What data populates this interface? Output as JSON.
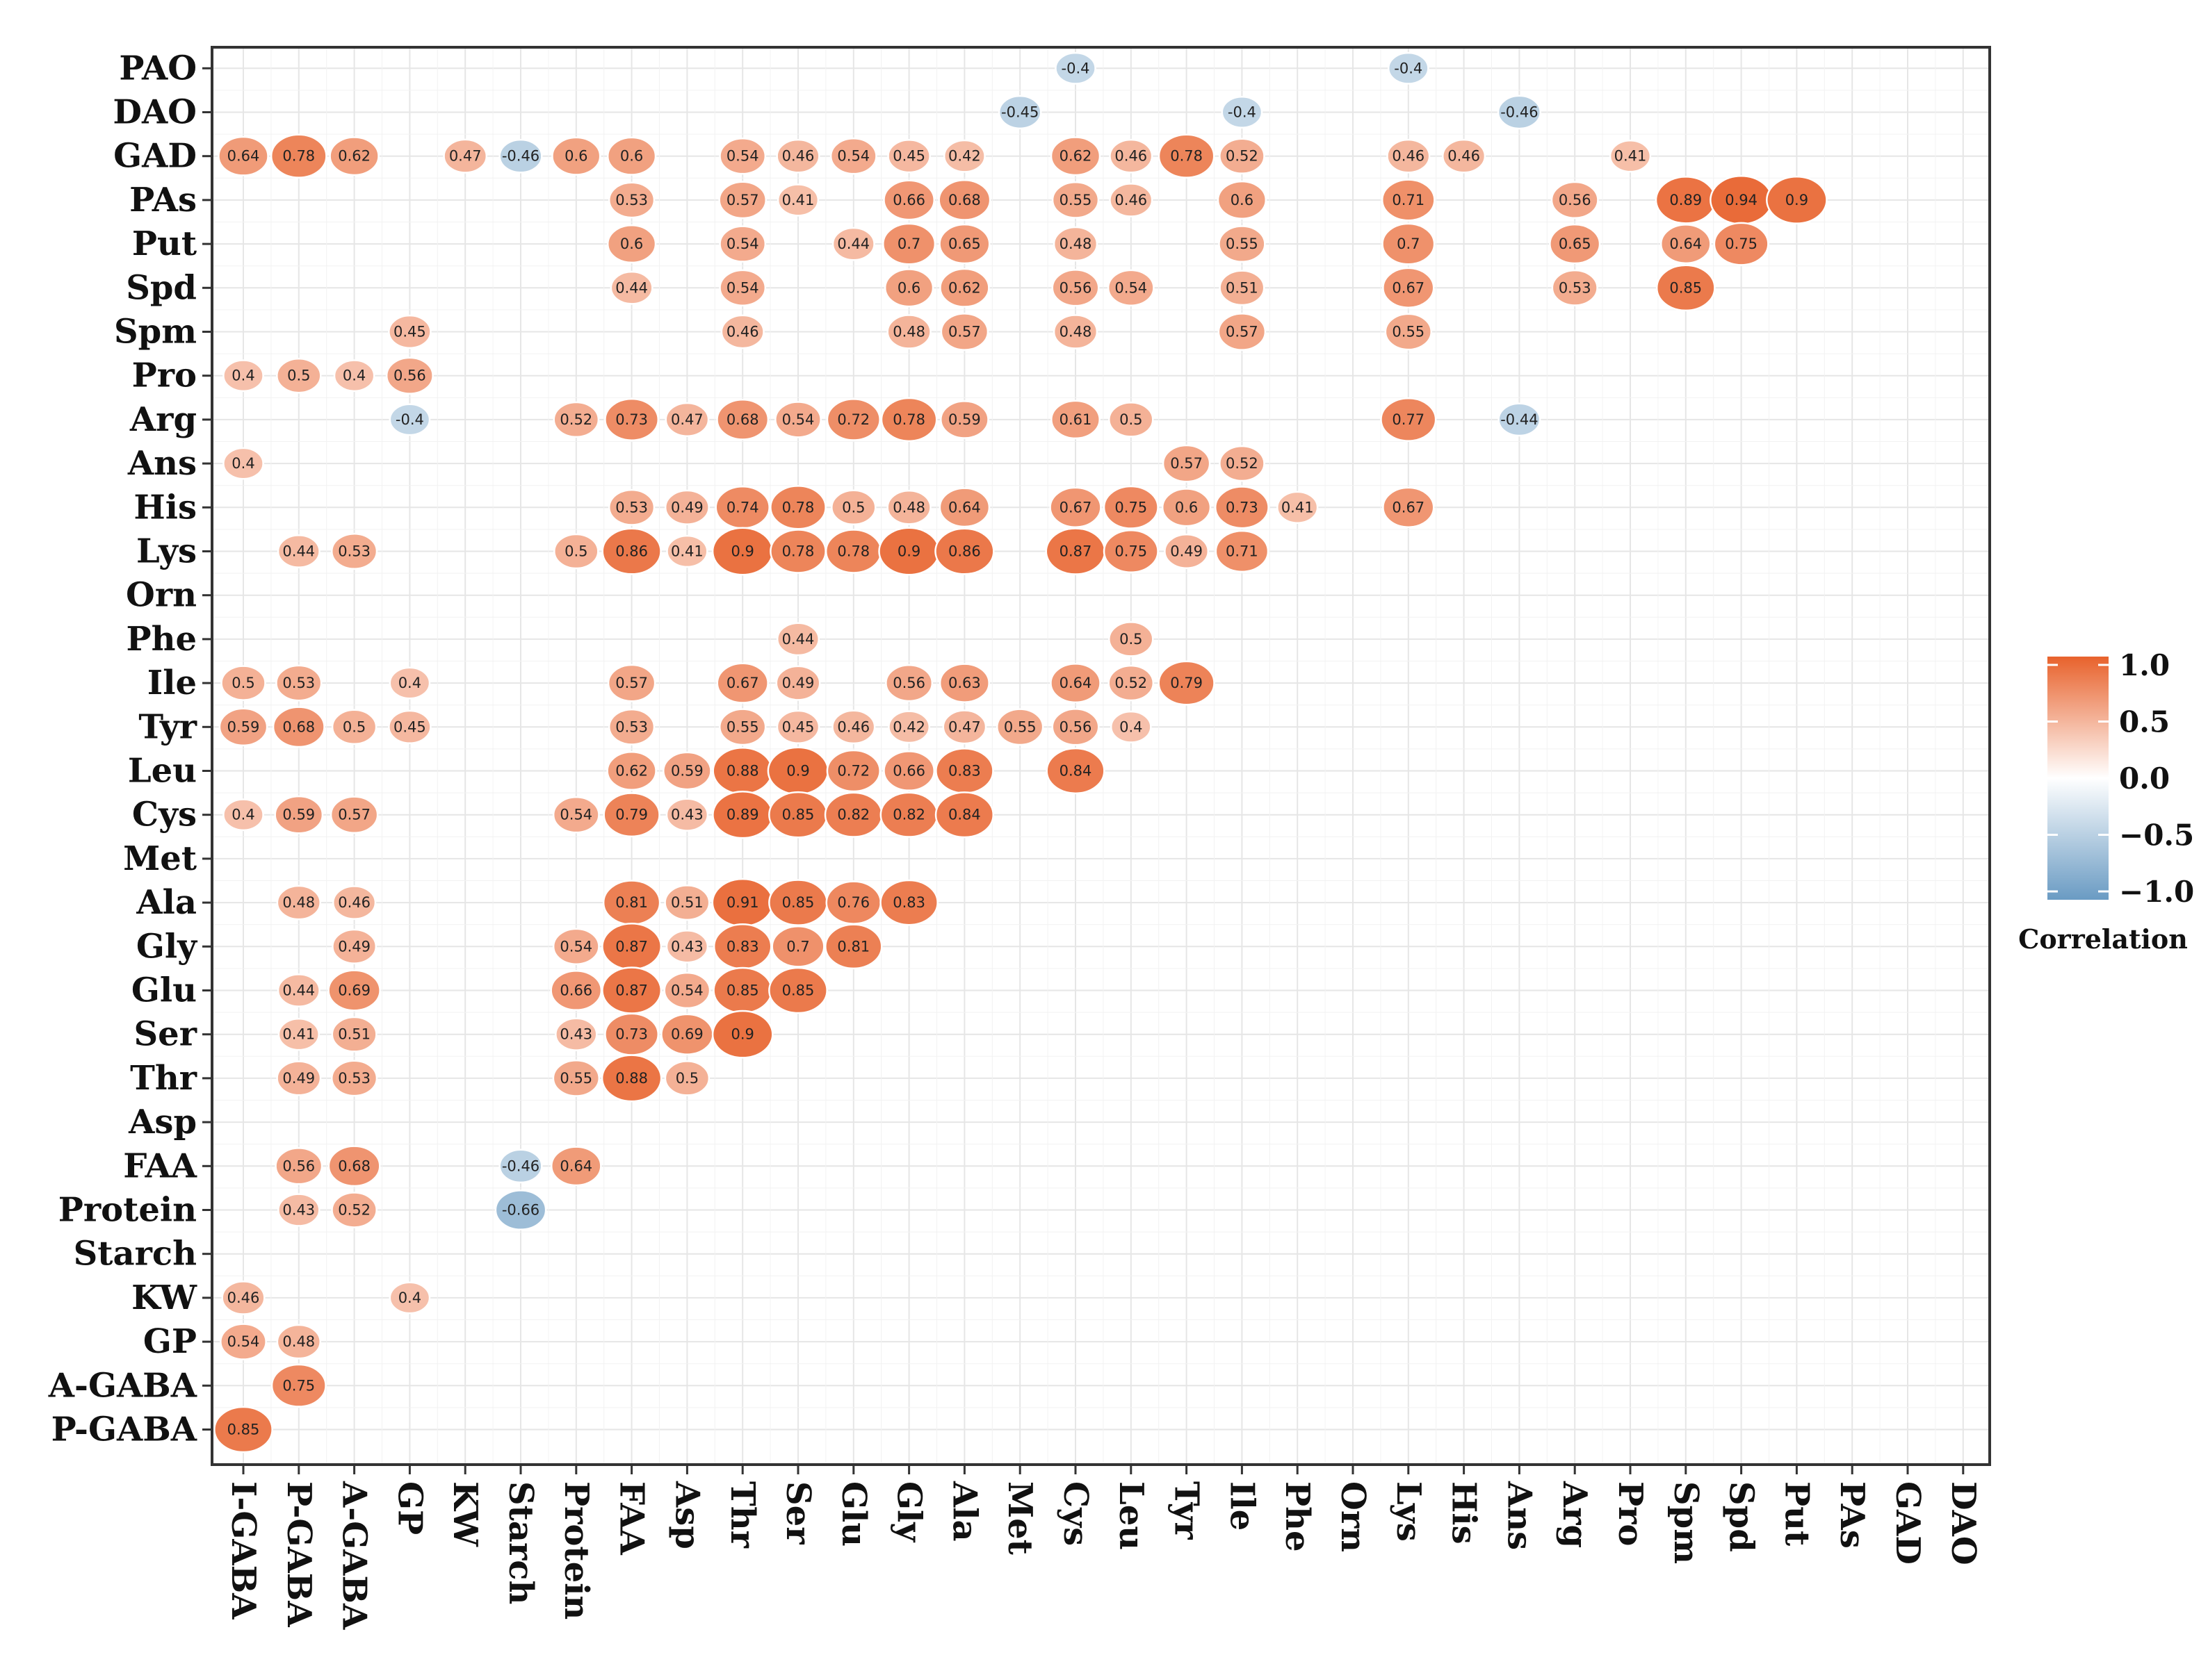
{
  "chart_data": {
    "type": "heatmap",
    "style": "circle-correlation-matrix",
    "rows": [
      "PAO",
      "DAO",
      "GAD",
      "PAs",
      "Put",
      "Spd",
      "Spm",
      "Pro",
      "Arg",
      "Ans",
      "His",
      "Lys",
      "Orn",
      "Phe",
      "Ile",
      "Tyr",
      "Leu",
      "Cys",
      "Met",
      "Ala",
      "Gly",
      "Glu",
      "Ser",
      "Thr",
      "Asp",
      "FAA",
      "Protein",
      "Starch",
      "KW",
      "GP",
      "A-GABA",
      "P-GABA"
    ],
    "columns": [
      "I-GABA",
      "P-GABA",
      "A-GABA",
      "GP",
      "KW",
      "Starch",
      "Protein",
      "FAA",
      "Asp",
      "Thr",
      "Ser",
      "Glu",
      "Gly",
      "Ala",
      "Met",
      "Cys",
      "Leu",
      "Tyr",
      "Ile",
      "Phe",
      "Orn",
      "Lys",
      "His",
      "Ans",
      "Arg",
      "Pro",
      "Spm",
      "Spd",
      "Put",
      "PAs",
      "GAD",
      "DAO"
    ],
    "values": {
      "PAO": {
        "Cys": "-0.4",
        "Lys": "-0.4"
      },
      "DAO": {
        "Met": "-0.45",
        "Ile": "-0.4",
        "Ans": "-0.46"
      },
      "GAD": {
        "I-GABA": "0.64",
        "P-GABA": "0.78",
        "A-GABA": "0.62",
        "KW": "0.47",
        "Starch": "-0.46",
        "Protein": "0.6",
        "FAA": "0.6",
        "Thr": "0.54",
        "Ser": "0.46",
        "Glu": "0.54",
        "Gly": "0.45",
        "Ala": "0.42",
        "Cys": "0.62",
        "Leu": "0.46",
        "Tyr": "0.78",
        "Ile": "0.52",
        "Lys": "0.46",
        "His": "0.46",
        "Pro": "0.41"
      },
      "PAs": {
        "FAA": "0.53",
        "Thr": "0.57",
        "Ser": "0.41",
        "Gly": "0.66",
        "Ala": "0.68",
        "Cys": "0.55",
        "Leu": "0.46",
        "Ile": "0.6",
        "Lys": "0.71",
        "Arg": "0.56",
        "Spm": "0.89",
        "Spd": "0.94",
        "Put": "0.9"
      },
      "Put": {
        "FAA": "0.6",
        "Thr": "0.54",
        "Glu": "0.44",
        "Gly": "0.7",
        "Ala": "0.65",
        "Cys": "0.48",
        "Ile": "0.55",
        "Lys": "0.7",
        "Arg": "0.65",
        "Spm": "0.64",
        "Spd": "0.75"
      },
      "Spd": {
        "FAA": "0.44",
        "Thr": "0.54",
        "Gly": "0.6",
        "Ala": "0.62",
        "Cys": "0.56",
        "Leu": "0.54",
        "Ile": "0.51",
        "Lys": "0.67",
        "Arg": "0.53",
        "Spm": "0.85"
      },
      "Spm": {
        "GP": "0.45",
        "Thr": "0.46",
        "Gly": "0.48",
        "Ala": "0.57",
        "Cys": "0.48",
        "Ile": "0.57",
        "Lys": "0.55"
      },
      "Pro": {
        "I-GABA": "0.4",
        "P-GABA": "0.5",
        "A-GABA": "0.4",
        "GP": "0.56"
      },
      "Arg": {
        "GP": "-0.4",
        "Protein": "0.52",
        "FAA": "0.73",
        "Asp": "0.47",
        "Thr": "0.68",
        "Ser": "0.54",
        "Glu": "0.72",
        "Gly": "0.78",
        "Ala": "0.59",
        "Cys": "0.61",
        "Leu": "0.5",
        "Lys": "0.77",
        "Ans": "-0.44"
      },
      "Ans": {
        "I-GABA": "0.4",
        "Tyr": "0.57",
        "Ile": "0.52"
      },
      "His": {
        "FAA": "0.53",
        "Asp": "0.49",
        "Thr": "0.74",
        "Ser": "0.78",
        "Glu": "0.5",
        "Gly": "0.48",
        "Ala": "0.64",
        "Cys": "0.67",
        "Leu": "0.75",
        "Tyr": "0.6",
        "Ile": "0.73",
        "Phe": "0.41",
        "Lys": "0.67"
      },
      "Lys": {
        "P-GABA": "0.44",
        "A-GABA": "0.53",
        "Protein": "0.5",
        "FAA": "0.86",
        "Asp": "0.41",
        "Thr": "0.9",
        "Ser": "0.78",
        "Glu": "0.78",
        "Gly": "0.9",
        "Ala": "0.86",
        "Cys": "0.87",
        "Leu": "0.75",
        "Tyr": "0.49",
        "Ile": "0.71"
      },
      "Orn": {},
      "Phe": {
        "Ser": "0.44",
        "Leu": "0.5"
      },
      "Ile": {
        "I-GABA": "0.5",
        "P-GABA": "0.53",
        "GP": "0.4",
        "FAA": "0.57",
        "Thr": "0.67",
        "Ser": "0.49",
        "Gly": "0.56",
        "Ala": "0.63",
        "Cys": "0.64",
        "Leu": "0.52",
        "Tyr": "0.79"
      },
      "Tyr": {
        "I-GABA": "0.59",
        "P-GABA": "0.68",
        "A-GABA": "0.5",
        "GP": "0.45",
        "FAA": "0.53",
        "Thr": "0.55",
        "Ser": "0.45",
        "Glu": "0.46",
        "Gly": "0.42",
        "Ala": "0.47",
        "Met": "0.55",
        "Cys": "0.56",
        "Leu": "0.4"
      },
      "Leu": {
        "FAA": "0.62",
        "Asp": "0.59",
        "Thr": "0.88",
        "Ser": "0.9",
        "Glu": "0.72",
        "Gly": "0.66",
        "Ala": "0.83",
        "Cys": "0.84"
      },
      "Cys": {
        "I-GABA": "0.4",
        "P-GABA": "0.59",
        "A-GABA": "0.57",
        "Protein": "0.54",
        "FAA": "0.79",
        "Asp": "0.43",
        "Thr": "0.89",
        "Ser": "0.85",
        "Glu": "0.82",
        "Gly": "0.82",
        "Ala": "0.84"
      },
      "Met": {},
      "Ala": {
        "P-GABA": "0.48",
        "A-GABA": "0.46",
        "FAA": "0.81",
        "Asp": "0.51",
        "Thr": "0.91",
        "Ser": "0.85",
        "Glu": "0.76",
        "Gly": "0.83"
      },
      "Gly": {
        "A-GABA": "0.49",
        "Protein": "0.54",
        "FAA": "0.87",
        "Asp": "0.43",
        "Thr": "0.83",
        "Ser": "0.7",
        "Glu": "0.81"
      },
      "Glu": {
        "P-GABA": "0.44",
        "A-GABA": "0.69",
        "Protein": "0.66",
        "FAA": "0.87",
        "Asp": "0.54",
        "Thr": "0.85",
        "Ser": "0.85"
      },
      "Ser": {
        "P-GABA": "0.41",
        "A-GABA": "0.51",
        "Protein": "0.43",
        "FAA": "0.73",
        "Asp": "0.69",
        "Thr": "0.9"
      },
      "Thr": {
        "P-GABA": "0.49",
        "A-GABA": "0.53",
        "Protein": "0.55",
        "FAA": "0.88",
        "Asp": "0.5"
      },
      "Asp": {},
      "FAA": {
        "P-GABA": "0.56",
        "A-GABA": "0.68",
        "Starch": "-0.46",
        "Protein": "0.64"
      },
      "Protein": {
        "P-GABA": "0.43",
        "A-GABA": "0.52",
        "Starch": "-0.66"
      },
      "Starch": {},
      "KW": {
        "I-GABA": "0.46",
        "GP": "0.4"
      },
      "GP": {
        "I-GABA": "0.54",
        "P-GABA": "0.48"
      },
      "A-GABA": {
        "P-GABA": "0.75"
      },
      "P-GABA": {
        "I-GABA": "0.85"
      }
    },
    "color_scale": {
      "min": -1.0,
      "max": 1.0,
      "low": "#6a9bc3",
      "mid": "#ffffff",
      "high": "#e8622c"
    },
    "legend": {
      "title": "Correlation",
      "ticks": [
        "1.0",
        "0.5",
        "0.0",
        "−0.5",
        "−1.0"
      ],
      "position": "right"
    },
    "grid": true
  }
}
